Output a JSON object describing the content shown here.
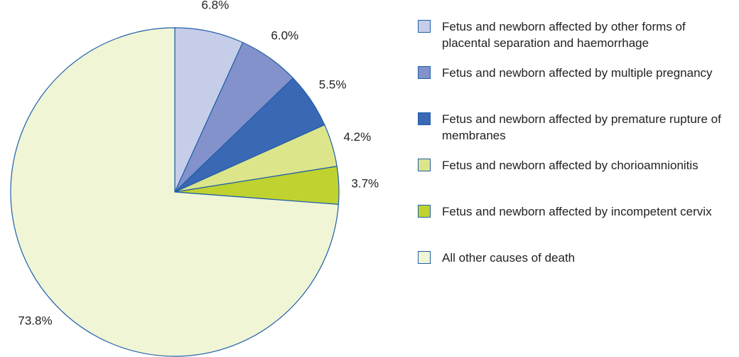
{
  "chart_data": {
    "type": "pie",
    "categories": [
      "Fetus and newborn affected by other forms of placental separation and haemorrhage",
      "Fetus and newborn affected by multiple pregnancy",
      "Fetus and newborn affected by premature rupture of membranes",
      "Fetus and newborn affected by chorioamnionitis",
      "Fetus and newborn affected by incompetent cervix",
      "All other causes of death"
    ],
    "values": [
      6.8,
      6.0,
      5.5,
      4.2,
      3.7,
      73.8
    ],
    "value_labels": [
      "6.8%",
      "6.0%",
      "5.5%",
      "4.2%",
      "3.7%",
      "73.8%"
    ],
    "colors": [
      "#c6cde9",
      "#8392cb",
      "#3a68b5",
      "#dce58a",
      "#bfd22f",
      "#f0f5d6"
    ],
    "legend": "right"
  }
}
